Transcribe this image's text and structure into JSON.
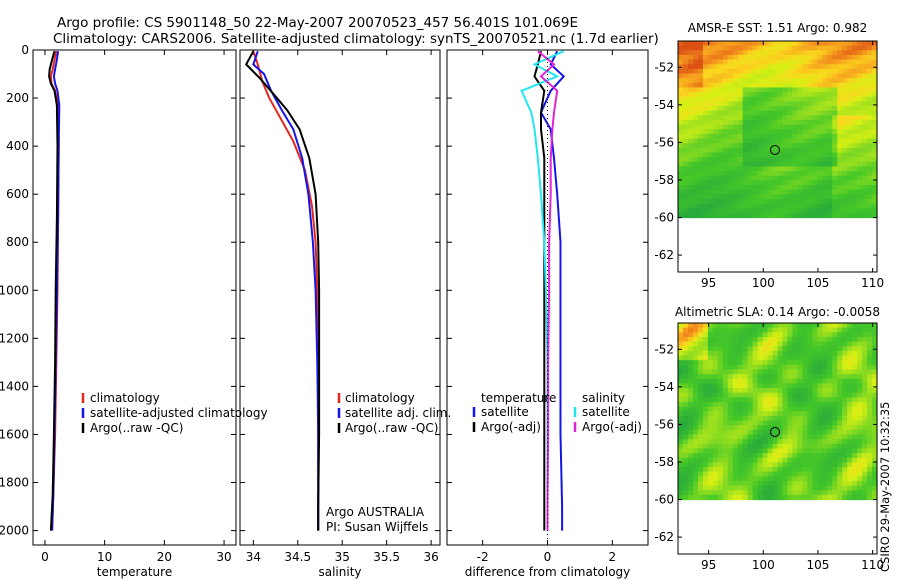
{
  "header": {
    "line1": "Argo profile: CS 5901148_50 22-May-2007 20070523_457 56.401S 101.069E",
    "line2": "Climatology: CARS2006. Satellite-adjusted climatology: synTS_20070521.nc (1.7d earlier)"
  },
  "side_label": "CSIRO 29-May-2007 10:32:35",
  "colors": {
    "climatology": "#e8251c",
    "satellite": "#1515e8",
    "argo": "#000000",
    "sal_satellite": "#22e6f0",
    "sal_argo": "#e024d8"
  },
  "chart_data": [
    {
      "id": "temp",
      "type": "line",
      "xlabel": "temperature",
      "ylim": [
        0,
        2060
      ],
      "xlim": [
        -2,
        32
      ],
      "xticks": [
        0,
        10,
        20,
        30
      ],
      "yticks": [
        0,
        200,
        400,
        600,
        800,
        1000,
        1200,
        1400,
        1600,
        1800,
        2000
      ],
      "y_inverted": true,
      "legend": [
        "climatology",
        "satellite-adjusted climatology",
        "Argo(..raw -QC)"
      ],
      "series": [
        {
          "name": "climatology",
          "color": "climatology",
          "x": [
            1.9,
            1.6,
            1.3,
            1.0,
            1.1,
            1.7,
            2.2,
            2.3,
            2.2,
            2.1,
            1.9,
            1.7,
            1.4,
            1.2
          ],
          "y": [
            5,
            40,
            80,
            110,
            140,
            170,
            230,
            400,
            700,
            1000,
            1300,
            1600,
            1850,
            2000
          ]
        },
        {
          "name": "satellite-adjusted climatology",
          "color": "satellite",
          "x": [
            2.2,
            2.0,
            1.7,
            1.5,
            1.7,
            2.1,
            2.4,
            2.3,
            2.2,
            2.0,
            1.8,
            1.6,
            1.4,
            1.2
          ],
          "y": [
            5,
            40,
            80,
            110,
            140,
            170,
            230,
            400,
            700,
            1000,
            1300,
            1600,
            1850,
            2000
          ]
        },
        {
          "name": "Argo(..raw -QC)",
          "color": "argo",
          "x": [
            1.6,
            1.2,
            0.8,
            0.7,
            1.0,
            1.6,
            2.0,
            2.1,
            2.0,
            1.8,
            1.7,
            1.5,
            1.3,
            1.0
          ],
          "y": [
            5,
            40,
            80,
            110,
            140,
            170,
            230,
            400,
            700,
            1000,
            1300,
            1600,
            1850,
            2000
          ]
        }
      ]
    },
    {
      "id": "sal",
      "type": "line",
      "xlabel": "salinity",
      "ylim": [
        0,
        2060
      ],
      "xlim": [
        33.85,
        36.1
      ],
      "xticks": [
        34,
        34.5,
        35,
        35.5,
        36
      ],
      "y_inverted": true,
      "legend": [
        "climatology",
        "satellite adj. clim.",
        "Argo(..raw -QC)"
      ],
      "notes": [
        "Argo AUSTRALIA",
        "PI: Susan Wijffels"
      ],
      "series": [
        {
          "name": "climatology",
          "color": "climatology",
          "x": [
            34.0,
            34.05,
            34.1,
            34.18,
            34.3,
            34.45,
            34.58,
            34.66,
            34.7,
            34.72,
            34.73,
            34.73,
            34.73,
            34.73
          ],
          "y": [
            5,
            60,
            130,
            200,
            280,
            380,
            500,
            650,
            800,
            1000,
            1300,
            1600,
            1900,
            2000
          ]
        },
        {
          "name": "satellite adj. clim.",
          "color": "satellite",
          "x": [
            34.05,
            34.0,
            34.12,
            34.2,
            34.32,
            34.45,
            34.55,
            34.62,
            34.67,
            34.7,
            34.72,
            34.73,
            34.73,
            34.73
          ],
          "y": [
            5,
            60,
            100,
            170,
            250,
            330,
            450,
            600,
            800,
            1000,
            1300,
            1600,
            1900,
            2000
          ]
        },
        {
          "name": "Argo(..raw -QC)",
          "color": "argo",
          "x": [
            34.0,
            33.92,
            34.08,
            34.22,
            34.38,
            34.52,
            34.63,
            34.7,
            34.73,
            34.74,
            34.74,
            34.74,
            34.73,
            34.73
          ],
          "y": [
            5,
            60,
            120,
            180,
            250,
            330,
            450,
            600,
            800,
            1000,
            1300,
            1600,
            1900,
            2000
          ]
        }
      ]
    },
    {
      "id": "diff",
      "type": "line",
      "xlabel": "difference from climatology",
      "ylim": [
        0,
        2060
      ],
      "xlim": [
        -3.1,
        3.1
      ],
      "xticks": [
        -2,
        0,
        2
      ],
      "y_inverted": true,
      "legend_left_title": "temperature",
      "legend_left": [
        "satellite",
        "Argo(-adj)"
      ],
      "legend_right_title": "salinity",
      "legend_right": [
        "satellite",
        "Argo(-adj)"
      ],
      "series": [
        {
          "name": "temperature satellite",
          "color": "satellite",
          "x": [
            0.3,
            0.1,
            0.5,
            0.1,
            -0.2,
            0.1,
            0.2,
            0.3,
            0.4,
            0.4,
            0.4,
            0.4,
            0.45,
            0.45
          ],
          "y": [
            5,
            60,
            110,
            170,
            260,
            330,
            450,
            600,
            800,
            1000,
            1300,
            1600,
            1900,
            2000
          ]
        },
        {
          "name": "temperature Argo(-adj)",
          "color": "argo",
          "x": [
            -0.2,
            -0.3,
            -0.4,
            -0.1,
            -0.2,
            -0.2,
            -0.1,
            -0.1,
            -0.1,
            -0.1,
            -0.1,
            -0.1,
            -0.1,
            -0.1
          ],
          "y": [
            5,
            60,
            110,
            170,
            260,
            330,
            450,
            600,
            800,
            1000,
            1300,
            1600,
            1900,
            2000
          ]
        },
        {
          "name": "salinity satellite",
          "color": "sal_satellite",
          "x": [
            0.5,
            -0.4,
            0.3,
            -0.8,
            -0.5,
            -0.4,
            -0.3,
            -0.2,
            -0.1,
            -0.05,
            0.0,
            0.0,
            0.0,
            0.0
          ],
          "y": [
            5,
            60,
            110,
            170,
            260,
            330,
            450,
            600,
            800,
            1000,
            1300,
            1600,
            1900,
            2000
          ]
        },
        {
          "name": "salinity Argo(-adj)",
          "color": "sal_argo",
          "x": [
            -0.3,
            0.2,
            -0.2,
            0.3,
            0.2,
            0.15,
            0.1,
            0.1,
            0.05,
            0.05,
            0.02,
            0.02,
            0.0,
            0.0
          ],
          "y": [
            5,
            60,
            110,
            170,
            260,
            330,
            450,
            600,
            800,
            1000,
            1300,
            1600,
            1900,
            2000
          ]
        }
      ]
    },
    {
      "id": "sst",
      "type": "heatmap",
      "title": "AMSR-E SST: 1.51  Argo: 0.982",
      "xlim": [
        92.2,
        110.4
      ],
      "ylim": [
        -62.9,
        -50.6
      ],
      "xticks": [
        95,
        100,
        105,
        110
      ],
      "yticks": [
        -52,
        -54,
        -56,
        -58,
        -60,
        -62
      ],
      "data_ylim": [
        -60,
        -50.6
      ],
      "marker": {
        "lon": 101.069,
        "lat": -56.401
      },
      "palette": "sst"
    },
    {
      "id": "sla",
      "type": "heatmap",
      "title": "Altimetric SLA: 0.14  Argo: -0.0058",
      "xlim": [
        92.2,
        110.4
      ],
      "ylim": [
        -62.9,
        -50.6
      ],
      "xticks": [
        95,
        100,
        105,
        110
      ],
      "yticks": [
        -52,
        -54,
        -56,
        -58,
        -60,
        -62
      ],
      "data_ylim": [
        -60,
        -50.6
      ],
      "marker": {
        "lon": 101.069,
        "lat": -56.401
      },
      "palette": "sla"
    }
  ]
}
